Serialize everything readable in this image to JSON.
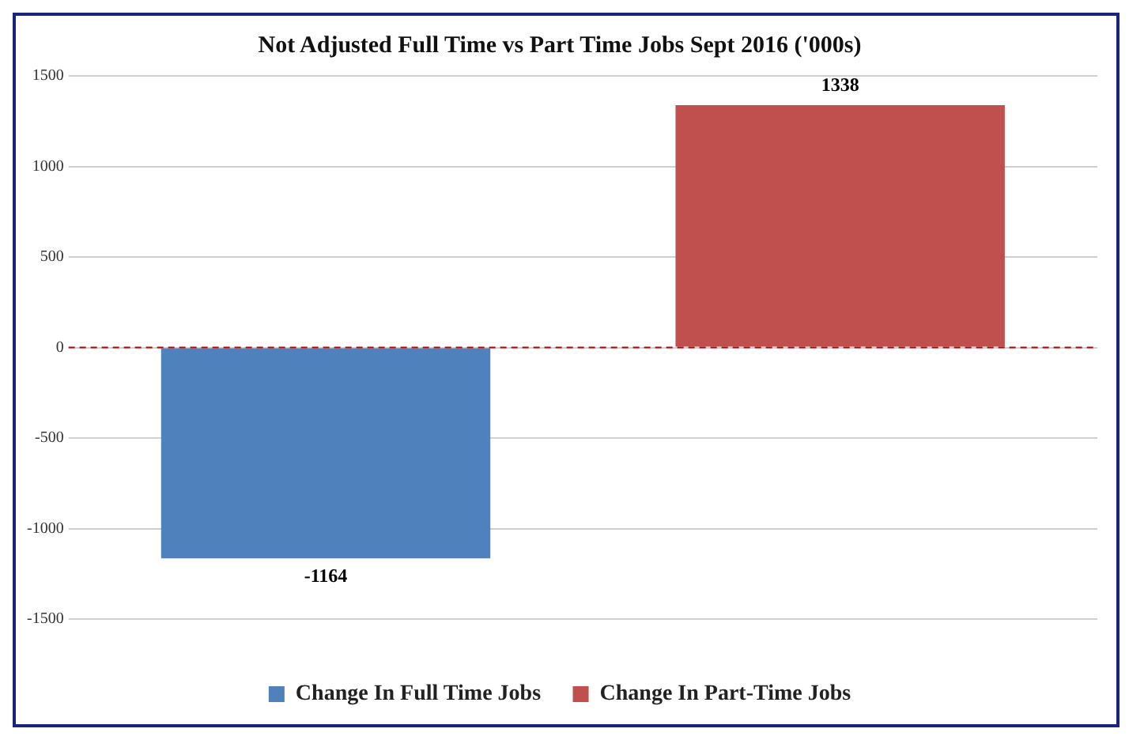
{
  "chart_data": {
    "type": "bar",
    "title": "Not Adjusted Full Time vs Part Time Jobs Sept 2016 ('000s)",
    "categories": [
      null,
      null
    ],
    "series": [
      {
        "name": "Change In Full Time Jobs",
        "color": "#4f81bd",
        "values": [
          -1164,
          null
        ]
      },
      {
        "name": "Change In Part-Time Jobs",
        "color": "#c0504d",
        "values": [
          null,
          1338
        ]
      }
    ],
    "ylim": [
      -1500,
      1500
    ],
    "yticks": [
      -1500,
      -1000,
      -500,
      0,
      500,
      1000,
      1500
    ],
    "grid": "y",
    "legend": "bottom",
    "data_labels": true,
    "ref_lines": [
      {
        "axis": "y",
        "value": 0,
        "color": "#c00000",
        "line_style": "dashed"
      }
    ]
  }
}
